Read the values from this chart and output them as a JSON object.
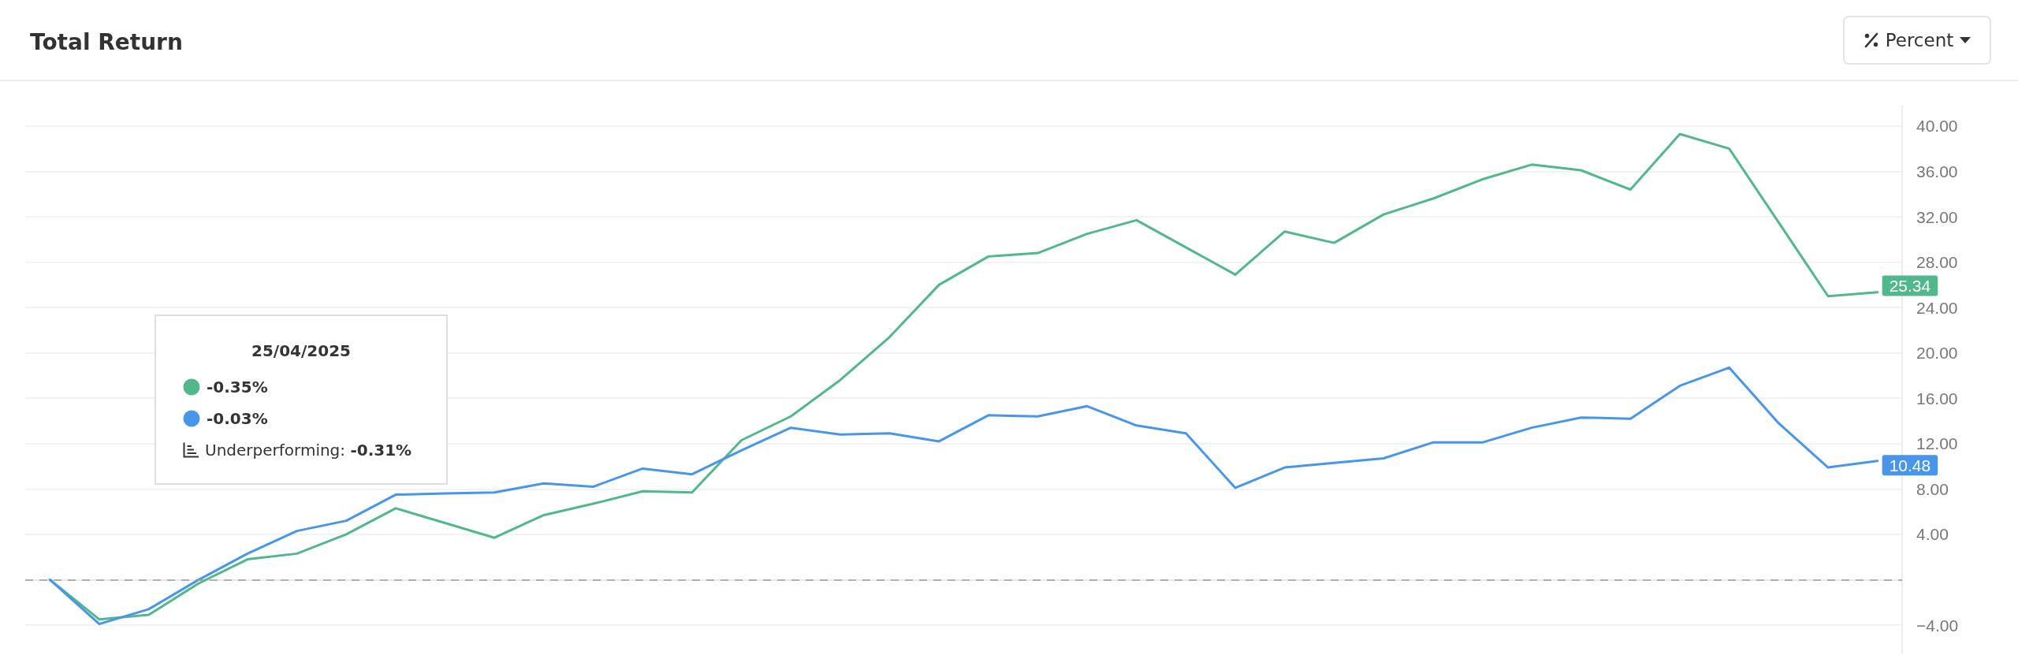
{
  "chart_data": {
    "type": "line",
    "title": "Total Return",
    "categories": [
      null,
      null,
      null,
      null,
      null,
      null,
      null,
      null,
      null,
      null,
      null,
      null,
      null,
      null,
      null,
      null,
      null,
      null,
      null,
      null,
      null,
      null,
      null,
      null,
      null,
      null,
      null,
      null,
      null,
      null,
      null,
      null,
      null,
      null,
      null,
      null,
      null,
      null
    ],
    "series": [
      {
        "color": "#51b88b",
        "values": [
          0,
          -3.5,
          -3.1,
          -0.35,
          1.8,
          2.3,
          4.0,
          6.3,
          5.0,
          3.7,
          5.7,
          6.7,
          7.8,
          7.7,
          12.3,
          14.4,
          17.6,
          21.4,
          26.0,
          28.5,
          28.8,
          30.5,
          31.7,
          29.3,
          26.9,
          30.7,
          29.7,
          32.2,
          33.6,
          35.3,
          36.6,
          36.1,
          34.4,
          39.3,
          38.0,
          31.5,
          25.0,
          25.34
        ],
        "value_labels": [
          null,
          null,
          null,
          null,
          null,
          null,
          null,
          null,
          null,
          null,
          null,
          null,
          null,
          null,
          null,
          null,
          null,
          null,
          null,
          null,
          null,
          null,
          null,
          null,
          null,
          null,
          null,
          null,
          null,
          null,
          null,
          null,
          null,
          null,
          null,
          null,
          null,
          "25.34"
        ]
      },
      {
        "color": "#4896ea",
        "values": [
          0,
          -3.9,
          -2.6,
          -0.03,
          2.3,
          4.3,
          5.2,
          7.5,
          7.6,
          7.7,
          8.5,
          8.2,
          9.8,
          9.3,
          11.4,
          13.4,
          12.8,
          12.9,
          12.2,
          14.5,
          14.4,
          15.3,
          13.6,
          12.9,
          8.1,
          9.9,
          10.3,
          10.7,
          12.1,
          12.1,
          13.4,
          14.3,
          14.2,
          17.1,
          18.7,
          13.8,
          9.9,
          10.48
        ],
        "value_labels": [
          null,
          null,
          null,
          null,
          null,
          null,
          null,
          null,
          null,
          null,
          null,
          null,
          null,
          null,
          null,
          null,
          null,
          null,
          null,
          null,
          null,
          null,
          null,
          null,
          null,
          null,
          null,
          null,
          null,
          null,
          null,
          null,
          null,
          null,
          null,
          null,
          null,
          "10.48"
        ]
      }
    ],
    "ylim": [
      -6.5,
      41.8
    ],
    "yticks": [
      {
        "value": -4,
        "label": "−4.00"
      },
      {
        "value": 0,
        "label": null
      },
      {
        "value": 4,
        "label": "4.00"
      },
      {
        "value": 8,
        "label": "8.00"
      },
      {
        "value": 12,
        "label": "12.00"
      },
      {
        "value": 16,
        "label": "16.00"
      },
      {
        "value": 20,
        "label": "20.00"
      },
      {
        "value": 24,
        "label": "24.00"
      },
      {
        "value": 28,
        "label": "28.00"
      },
      {
        "value": 32,
        "label": "32.00"
      },
      {
        "value": 36,
        "label": "36.00"
      },
      {
        "value": 40,
        "label": "40.00"
      }
    ],
    "grid": "y",
    "tick_labels": "y",
    "marker": "none",
    "ref_lines": [
      {
        "axis": "y",
        "value": 0,
        "color": "#9a9a9a",
        "line_style": "dashed"
      }
    ],
    "annotations": [
      "25/04/2025",
      "-0.35%",
      "-0.03%",
      "Underperforming: -0.31%",
      "Percent"
    ]
  }
}
